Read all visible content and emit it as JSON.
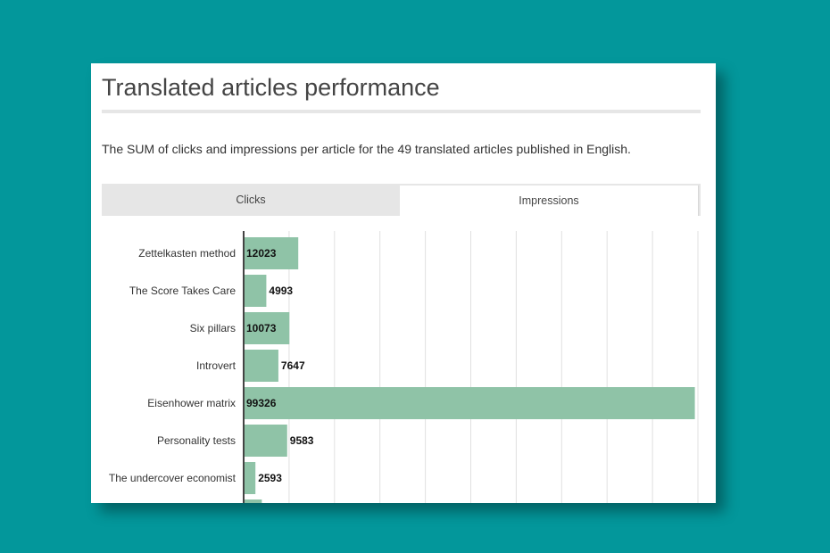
{
  "title": "Translated articles performance",
  "description": "The SUM of clicks and impressions per article for the 49 translated articles published in English.",
  "tabs": [
    {
      "label": "Clicks",
      "active": false
    },
    {
      "label": "Impressions",
      "active": true
    }
  ],
  "colors": {
    "background": "#03979b",
    "bar": "#8fc3a7",
    "grid": "#e0e0e0",
    "axis": "#444444"
  },
  "chart_data": {
    "type": "bar",
    "orientation": "horizontal",
    "categories": [
      "Zettelkasten method",
      "The Score Takes Care",
      "Six pillars",
      "Introvert",
      "Eisenhower matrix",
      "Personality tests",
      "The undercover economist"
    ],
    "values": [
      12023,
      4993,
      10073,
      7647,
      99326,
      9583,
      2593
    ],
    "xlim": [
      0,
      100000
    ],
    "grid": true,
    "partially_visible_next_value": 4000
  }
}
